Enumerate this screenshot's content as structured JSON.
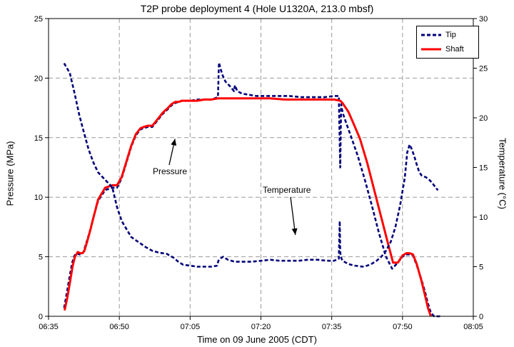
{
  "chart_data": {
    "type": "line",
    "title": "T2P probe deployment 4 (Hole U1320A, 213.0 mbsf)",
    "xlabel": "Time on 09 June 2005 (CDT)",
    "ylabel_left": "Pressure (MPa)",
    "ylabel_right": "Temperature (°C)",
    "x_ticks": [
      "06:35",
      "06:50",
      "07:05",
      "07:20",
      "07:35",
      "07:50",
      "08:05"
    ],
    "x_tick_minutes": [
      395,
      410,
      425,
      440,
      455,
      470,
      485
    ],
    "xlim_minutes": [
      395,
      485
    ],
    "y_left_ticks": [
      "0",
      "5",
      "10",
      "15",
      "20",
      "25"
    ],
    "ylim_left": [
      0,
      25
    ],
    "y_right_ticks": [
      "0",
      "5",
      "10",
      "15",
      "20",
      "25",
      "30"
    ],
    "ylim_right": [
      0,
      30
    ],
    "grid": true,
    "legend_position": "top-right",
    "legend": [
      {
        "label": "Tip",
        "color": "#00007a",
        "style": "dashed"
      },
      {
        "label": "Shaft",
        "color": "#ff0000",
        "style": "solid"
      }
    ],
    "annotations": [
      {
        "text": "Pressure",
        "points_to": {
          "x": 421.8,
          "y": 14.9
        }
      },
      {
        "text": "Temperature",
        "points_to": {
          "x": 447.3,
          "y": 8.2
        }
      }
    ],
    "series": [
      {
        "name": "Tip",
        "axis": "left",
        "color": "#00007a",
        "style": "dashed",
        "x": [
          398.3,
          398.8,
          399.4,
          400.0,
          400.5,
          401.0,
          401.5,
          402.0,
          402.4,
          403.1,
          403.8,
          404.3,
          405.5,
          407.0,
          408.5,
          409.5,
          410.5,
          411.5,
          412.5,
          413.5,
          414.5,
          415.2,
          416.0,
          417.0,
          418.0,
          419.2,
          420.3,
          421.0,
          421.8,
          422.5,
          423.3,
          424.1,
          425.0,
          426.5,
          428.0,
          429.5,
          430.9,
          431.1,
          431.8,
          432.5,
          433.5,
          434.3,
          434.5,
          435.0,
          436.0,
          437.5,
          439.0,
          441.0,
          443.5,
          446.0,
          448.5,
          451.0,
          453.5,
          455.5,
          456.5,
          456.8,
          457.0,
          457.1,
          457.4,
          458.0,
          459.0,
          460.5,
          462.0,
          463.5,
          465.0,
          466.5,
          467.8,
          469.0,
          470.0,
          470.7,
          471.2,
          471.7,
          472.2,
          473.0,
          474.0,
          474.8,
          475.3,
          476.0,
          476.7,
          477.3,
          478.0
        ],
        "y": [
          0.7,
          1.8,
          3.2,
          4.5,
          5.1,
          5.3,
          5.2,
          5.2,
          5.4,
          6.3,
          7.2,
          8.0,
          9.7,
          10.6,
          10.8,
          10.8,
          11.6,
          12.9,
          14.2,
          15.2,
          15.7,
          15.8,
          15.9,
          15.9,
          16.4,
          17.0,
          17.4,
          17.7,
          17.9,
          18.0,
          18.1,
          18.1,
          18.1,
          18.2,
          18.2,
          18.2,
          18.4,
          21.3,
          20.3,
          19.7,
          19.3,
          18.9,
          19.4,
          18.9,
          18.7,
          18.6,
          18.5,
          18.5,
          18.5,
          18.5,
          18.4,
          18.4,
          18.4,
          18.5,
          18.5,
          12.5,
          17.8,
          17.5,
          17.0,
          16.3,
          15.2,
          13.5,
          11.5,
          9.3,
          7.0,
          5.0,
          4.0,
          4.5,
          5.0,
          5.2,
          5.2,
          5.2,
          5.1,
          4.3,
          3.1,
          2.0,
          1.2,
          0.3,
          0.0,
          0.0,
          0.0
        ]
      },
      {
        "name": "Shaft",
        "axis": "left",
        "color": "#ff0000",
        "style": "solid",
        "x": [
          398.4,
          399.0,
          399.6,
          400.1,
          400.6,
          401.2,
          401.7,
          402.2,
          402.6,
          403.2,
          403.9,
          404.4,
          405.5,
          407.0,
          408.5,
          409.5,
          410.5,
          411.5,
          412.5,
          413.5,
          414.5,
          415.2,
          416.0,
          417.0,
          418.0,
          419.2,
          420.3,
          421.0,
          421.8,
          422.5,
          423.3,
          424.1,
          425.0,
          426.5,
          428.0,
          429.5,
          430.9,
          431.5,
          432.5,
          434.0,
          436.0,
          439.0,
          442.0,
          445.0,
          448.0,
          451.0,
          453.5,
          455.5,
          456.8,
          457.3,
          457.8,
          458.5,
          459.5,
          461.0,
          462.5,
          464.0,
          465.5,
          466.8,
          468.0,
          469.0,
          470.0,
          470.8,
          471.5,
          472.2,
          473.0,
          474.0,
          474.8,
          475.4,
          476.0
        ],
        "y": [
          0.5,
          1.6,
          3.0,
          4.2,
          5.0,
          5.4,
          5.3,
          5.3,
          5.5,
          6.3,
          7.3,
          8.1,
          9.8,
          10.8,
          11.0,
          11.0,
          11.7,
          13.0,
          14.3,
          15.3,
          15.8,
          15.9,
          16.0,
          16.0,
          16.5,
          17.1,
          17.5,
          17.8,
          18.0,
          18.0,
          18.1,
          18.1,
          18.1,
          18.1,
          18.2,
          18.2,
          18.3,
          18.3,
          18.3,
          18.3,
          18.3,
          18.3,
          18.3,
          18.2,
          18.2,
          18.2,
          18.2,
          18.2,
          18.1,
          17.9,
          17.6,
          17.2,
          16.3,
          14.9,
          12.9,
          10.6,
          8.3,
          6.3,
          4.5,
          4.5,
          5.1,
          5.3,
          5.3,
          5.2,
          4.4,
          3.0,
          1.7,
          0.7,
          0.0
        ]
      },
      {
        "name": "Temperature",
        "axis": "right",
        "color": "#00007a",
        "style": "dashed",
        "x": [
          398.3,
          399.5,
          400.5,
          401.5,
          402.5,
          403.5,
          404.5,
          405.5,
          406.5,
          407.5,
          408.5,
          409.5,
          410.5,
          411.5,
          412.5,
          414.0,
          415.5,
          417.0,
          418.5,
          420.0,
          421.5,
          422.5,
          423.5,
          425.0,
          426.5,
          428.0,
          429.5,
          430.7,
          430.8,
          431.0,
          431.3,
          432.0,
          433.0,
          434.5,
          436.0,
          438.0,
          440.0,
          442.0,
          444.0,
          446.0,
          448.0,
          450.0,
          452.0,
          454.0,
          455.5,
          456.5,
          456.7,
          456.8,
          457.0,
          457.3,
          458.0,
          459.0,
          460.0,
          461.5,
          462.5,
          463.5,
          464.5,
          465.5,
          466.5,
          467.5,
          468.5,
          469.5,
          470.5,
          471.0,
          471.5,
          472.0,
          472.5,
          473.0,
          473.5,
          474.0,
          475.0,
          475.8,
          476.5,
          477.0,
          477.5
        ],
        "y": [
          25.5,
          24.5,
          22.5,
          20.3,
          18.5,
          16.8,
          15.5,
          14.5,
          14.0,
          13.5,
          13.0,
          11.0,
          9.6,
          8.8,
          8.0,
          7.5,
          7.0,
          6.6,
          6.4,
          6.3,
          5.9,
          5.5,
          5.2,
          5.1,
          5.0,
          5.0,
          5.0,
          5.1,
          5.3,
          5.6,
          5.8,
          6.0,
          5.7,
          5.5,
          5.5,
          5.5,
          5.6,
          5.7,
          5.6,
          5.6,
          5.6,
          5.7,
          5.7,
          5.6,
          5.6,
          5.8,
          9.6,
          6.4,
          5.9,
          5.6,
          5.4,
          5.2,
          5.1,
          5.0,
          5.1,
          5.3,
          5.6,
          6.0,
          6.6,
          7.5,
          9.0,
          11.2,
          14.0,
          16.5,
          17.3,
          16.8,
          16.1,
          15.3,
          14.6,
          14.2,
          14.0,
          13.7,
          13.3,
          13.0,
          12.7
        ]
      }
    ]
  }
}
